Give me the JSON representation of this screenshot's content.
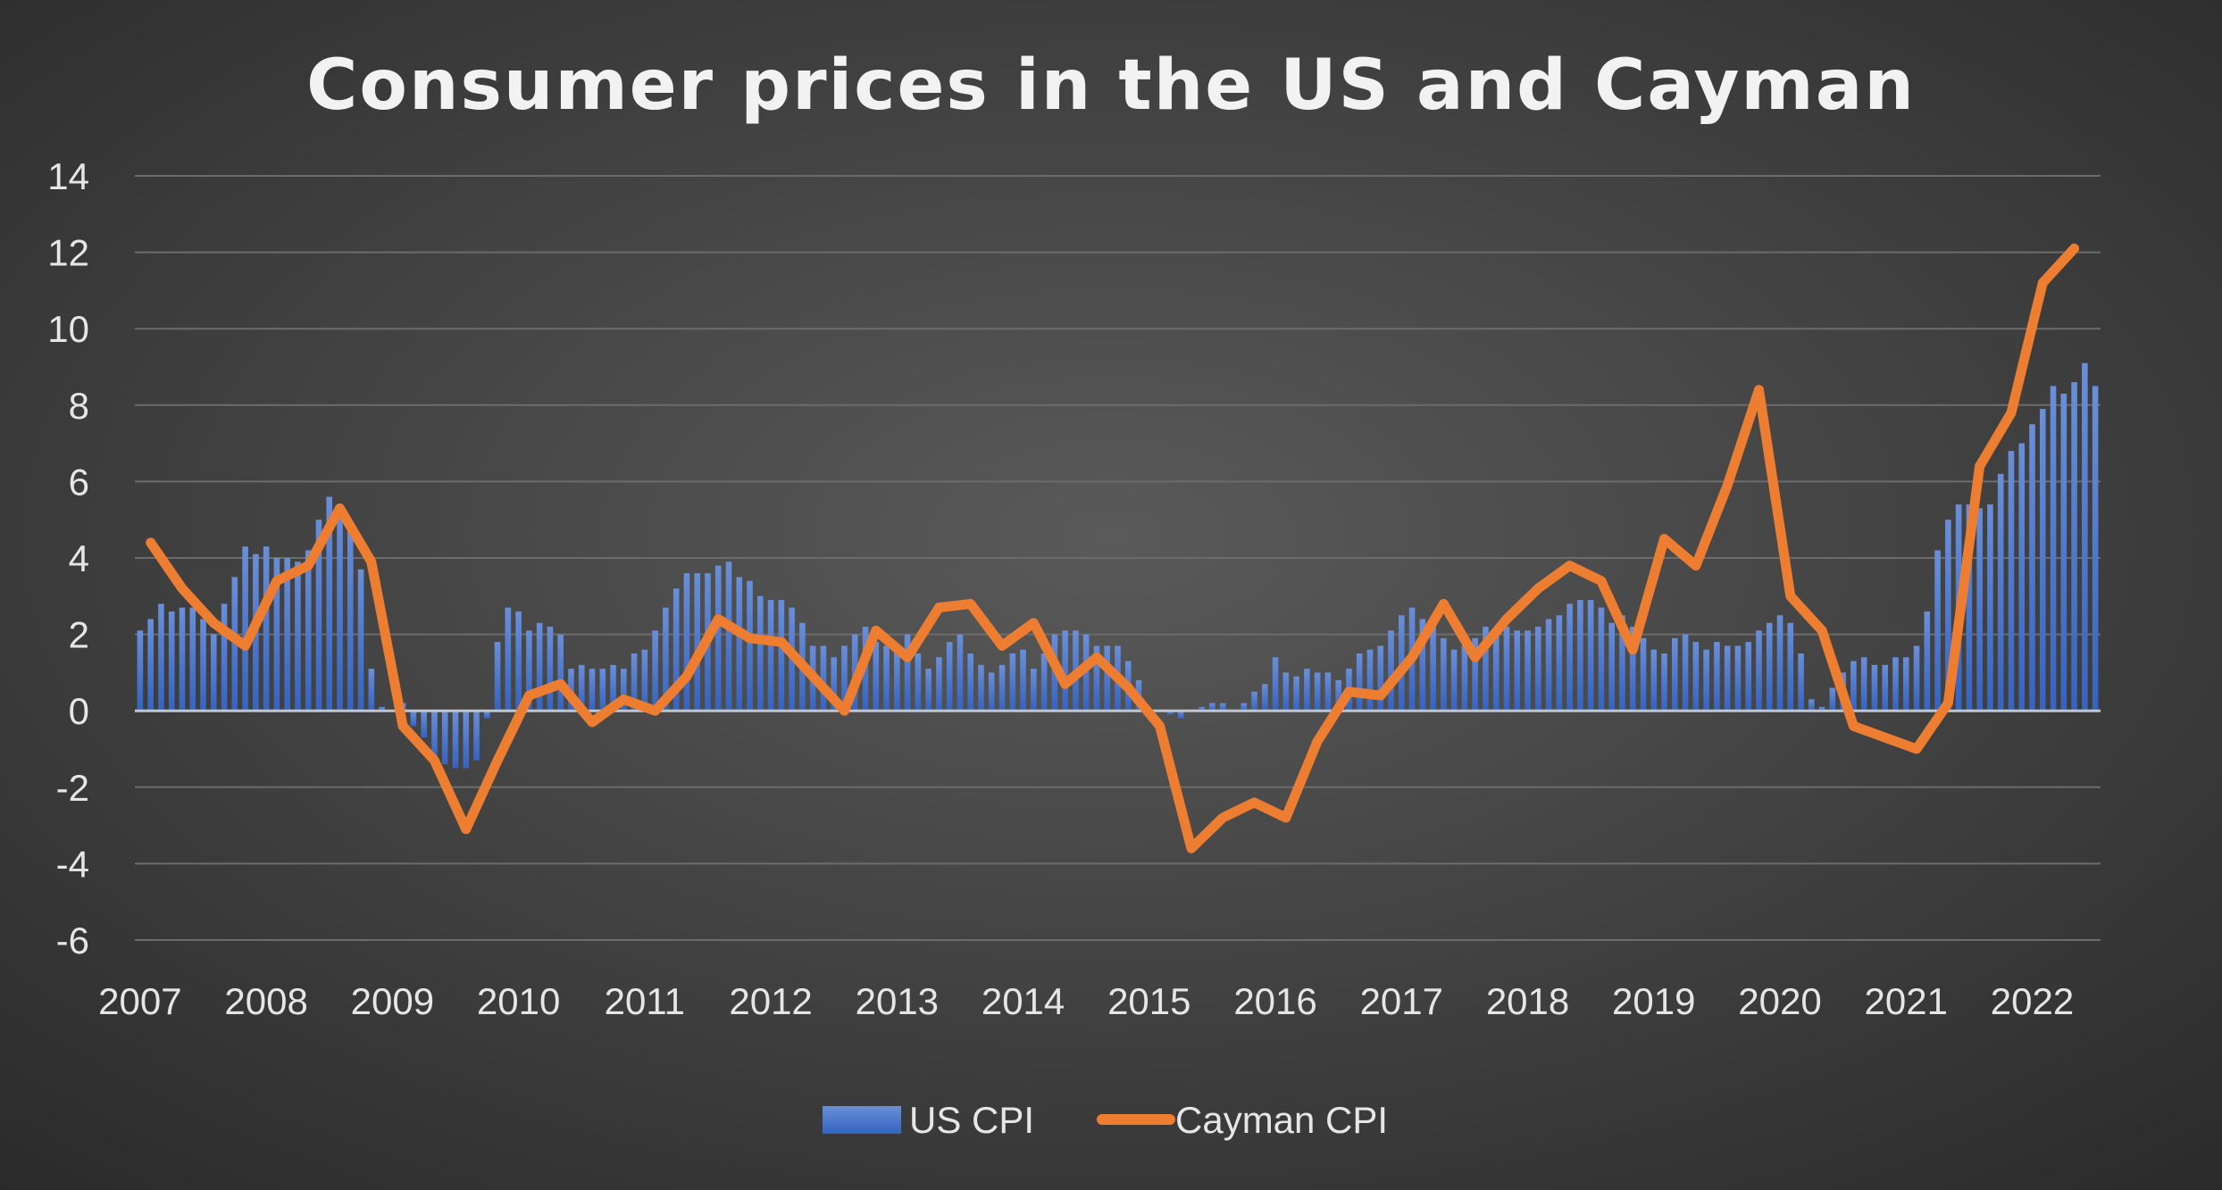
{
  "chart_data": {
    "type": "bar+line",
    "title": "Consumer prices in the US and Cayman",
    "xlabel": "",
    "ylabel": "",
    "ylim": [
      -6,
      14
    ],
    "yticks": [
      "14",
      "12",
      "10",
      "8",
      "6",
      "4",
      "2",
      "0",
      "-2",
      "-4",
      "-6"
    ],
    "ytick_values": [
      14,
      12,
      10,
      8,
      6,
      4,
      2,
      0,
      -2,
      -4,
      -6
    ],
    "xticks": [
      "2007",
      "2008",
      "2009",
      "2010",
      "2011",
      "2012",
      "2013",
      "2014",
      "2015",
      "2016",
      "2017",
      "2018",
      "2019",
      "2020",
      "2021",
      "2022"
    ],
    "grid": true,
    "legend_position": "bottom",
    "series": [
      {
        "name": "US CPI",
        "type": "bar",
        "frequency": "monthly",
        "start": "2007-01",
        "color": "#4472c4",
        "values": [
          2.1,
          2.4,
          2.8,
          2.6,
          2.7,
          2.7,
          2.4,
          2.0,
          2.8,
          3.5,
          4.3,
          4.1,
          4.3,
          4.0,
          4.0,
          3.9,
          4.2,
          5.0,
          5.6,
          5.4,
          4.9,
          3.7,
          1.1,
          0.1,
          0.0,
          0.2,
          -0.4,
          -0.7,
          -1.3,
          -1.4,
          -1.5,
          -1.5,
          -1.3,
          -0.2,
          1.8,
          2.7,
          2.6,
          2.1,
          2.3,
          2.2,
          2.0,
          1.1,
          1.2,
          1.1,
          1.1,
          1.2,
          1.1,
          1.5,
          1.6,
          2.1,
          2.7,
          3.2,
          3.6,
          3.6,
          3.6,
          3.8,
          3.9,
          3.5,
          3.4,
          3.0,
          2.9,
          2.9,
          2.7,
          2.3,
          1.7,
          1.7,
          1.4,
          1.7,
          2.0,
          2.2,
          1.8,
          1.7,
          1.6,
          2.0,
          1.5,
          1.1,
          1.4,
          1.8,
          2.0,
          1.5,
          1.2,
          1.0,
          1.2,
          1.5,
          1.6,
          1.1,
          1.5,
          2.0,
          2.1,
          2.1,
          2.0,
          1.7,
          1.7,
          1.7,
          1.3,
          0.8,
          -0.1,
          0.0,
          -0.1,
          -0.2,
          0.0,
          0.1,
          0.2,
          0.2,
          0.0,
          0.2,
          0.5,
          0.7,
          1.4,
          1.0,
          0.9,
          1.1,
          1.0,
          1.0,
          0.8,
          1.1,
          1.5,
          1.6,
          1.7,
          2.1,
          2.5,
          2.7,
          2.4,
          2.2,
          1.9,
          1.6,
          1.7,
          1.9,
          2.2,
          2.0,
          2.2,
          2.1,
          2.1,
          2.2,
          2.4,
          2.5,
          2.8,
          2.9,
          2.9,
          2.7,
          2.3,
          2.5,
          2.2,
          1.9,
          1.6,
          1.5,
          1.9,
          2.0,
          1.8,
          1.6,
          1.8,
          1.7,
          1.7,
          1.8,
          2.1,
          2.3,
          2.5,
          2.3,
          1.5,
          0.3,
          0.1,
          0.6,
          1.0,
          1.3,
          1.4,
          1.2,
          1.2,
          1.4,
          1.4,
          1.7,
          2.6,
          4.2,
          5.0,
          5.4,
          5.4,
          5.3,
          5.4,
          6.2,
          6.8,
          7.0,
          7.5,
          7.9,
          8.5,
          8.3,
          8.6,
          9.1,
          8.5
        ]
      },
      {
        "name": "Cayman CPI",
        "type": "line",
        "frequency": "quarterly",
        "start": "2007-Q1",
        "color": "#ed7d31",
        "values": [
          4.4,
          3.2,
          2.3,
          1.7,
          3.4,
          3.8,
          5.3,
          3.9,
          -0.4,
          -1.3,
          -3.1,
          -1.3,
          0.4,
          0.7,
          -0.3,
          0.3,
          0.0,
          0.9,
          2.4,
          1.9,
          1.8,
          0.9,
          0.0,
          2.1,
          1.4,
          2.7,
          2.8,
          1.7,
          2.3,
          0.7,
          1.4,
          0.6,
          -0.4,
          -3.6,
          -2.8,
          -2.4,
          -2.8,
          -0.8,
          0.5,
          0.4,
          1.4,
          2.8,
          1.4,
          2.4,
          3.2,
          3.8,
          3.4,
          1.6,
          4.5,
          3.8,
          5.9,
          8.4,
          3.0,
          2.1,
          -0.4,
          -0.7,
          -1.0,
          0.2,
          6.4,
          7.8,
          11.2,
          12.1
        ]
      }
    ]
  }
}
